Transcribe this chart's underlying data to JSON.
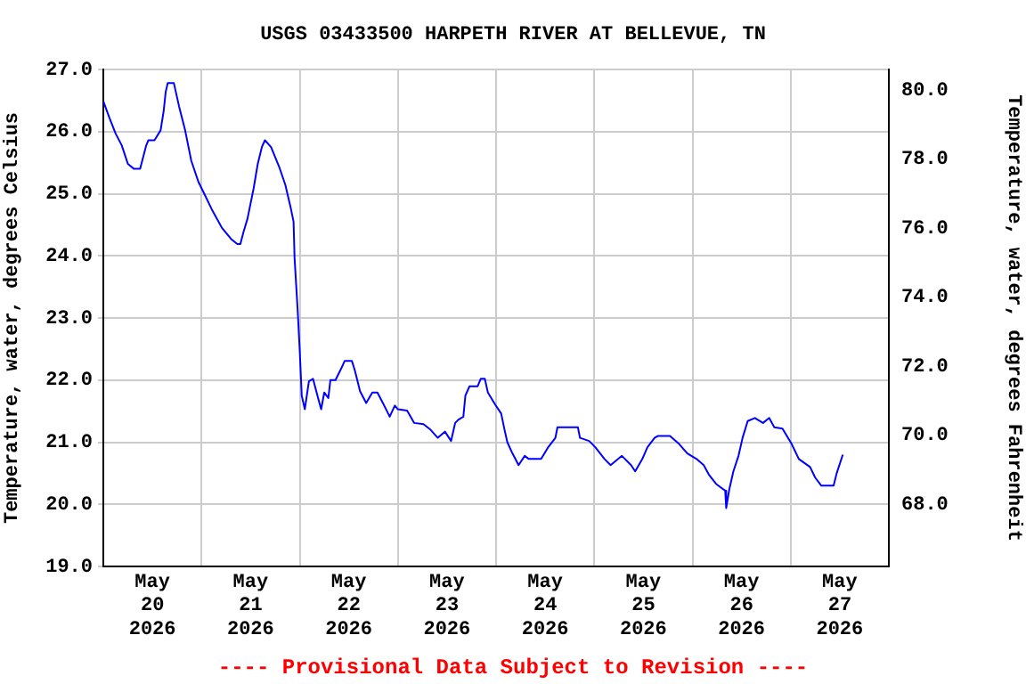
{
  "chart_data": {
    "type": "line",
    "title": "USGS 03433500 HARPETH RIVER AT BELLEVUE, TN",
    "ylabel": "Temperature, water, degrees Celsius",
    "y2label": "Temperature, water, degrees Fahrenheit",
    "annotations": [
      "---- Provisional Data Subject to Revision ----"
    ],
    "x": [
      "2026-05-20T00:00",
      "2026-05-20T01:30",
      "2026-05-20T03:00",
      "2026-05-20T04:30",
      "2026-05-20T06:00",
      "2026-05-20T07:30",
      "2026-05-20T09:00",
      "2026-05-20T10:30",
      "2026-05-20T11:00",
      "2026-05-20T12:30",
      "2026-05-20T14:00",
      "2026-05-20T14:45",
      "2026-05-20T15:15",
      "2026-05-20T15:45",
      "2026-05-20T17:15",
      "2026-05-20T18:30",
      "2026-05-20T20:00",
      "2026-05-20T21:30",
      "2026-05-20T23:15",
      "2026-05-21T00:45",
      "2026-05-21T02:30",
      "2026-05-21T05:00",
      "2026-05-21T07:15",
      "2026-05-21T08:45",
      "2026-05-21T09:30",
      "2026-05-21T10:15",
      "2026-05-21T11:15",
      "2026-05-21T12:45",
      "2026-05-21T13:45",
      "2026-05-21T14:45",
      "2026-05-21T15:30",
      "2026-05-21T17:00",
      "2026-05-21T19:00",
      "2026-05-21T20:30",
      "2026-05-21T21:45",
      "2026-05-21T22:30",
      "2026-05-21T22:45",
      "2026-05-21T23:30",
      "2026-05-22T00:00",
      "2026-05-22T00:30",
      "2026-05-22T01:15",
      "2026-05-22T02:15",
      "2026-05-22T03:15",
      "2026-05-22T04:30",
      "2026-05-22T05:15",
      "2026-05-22T06:00",
      "2026-05-22T07:00",
      "2026-05-22T07:30",
      "2026-05-22T08:45",
      "2026-05-22T10:15",
      "2026-05-22T11:00",
      "2026-05-22T12:45",
      "2026-05-22T13:30",
      "2026-05-22T14:45",
      "2026-05-22T16:15",
      "2026-05-22T17:45",
      "2026-05-22T19:00",
      "2026-05-22T20:30",
      "2026-05-22T21:15",
      "2026-05-22T22:00",
      "2026-05-22T23:15",
      "2026-05-23T00:00",
      "2026-05-23T02:15",
      "2026-05-23T04:00",
      "2026-05-23T06:15",
      "2026-05-23T08:00",
      "2026-05-23T09:45",
      "2026-05-23T11:30",
      "2026-05-23T13:00",
      "2026-05-23T14:00",
      "2026-05-23T14:45",
      "2026-05-23T16:00",
      "2026-05-23T16:30",
      "2026-05-23T17:30",
      "2026-05-23T19:30",
      "2026-05-23T20:15",
      "2026-05-23T21:15",
      "2026-05-23T22:00",
      "2026-05-23T23:45",
      "2026-05-24T01:15",
      "2026-05-24T02:00",
      "2026-05-24T02:45",
      "2026-05-24T04:00",
      "2026-05-24T05:30",
      "2026-05-24T07:00",
      "2026-05-24T08:00",
      "2026-05-24T11:00",
      "2026-05-24T12:45",
      "2026-05-24T14:30",
      "2026-05-24T15:00",
      "2026-05-24T20:00",
      "2026-05-24T20:30",
      "2026-05-24T22:45",
      "2026-05-25T00:15",
      "2026-05-25T02:30",
      "2026-05-25T04:00",
      "2026-05-25T06:45",
      "2026-05-25T09:00",
      "2026-05-25T10:00",
      "2026-05-25T11:45",
      "2026-05-25T13:00",
      "2026-05-25T14:45",
      "2026-05-25T15:30",
      "2026-05-25T18:30",
      "2026-05-25T20:45",
      "2026-05-25T22:45",
      "2026-05-26T01:00",
      "2026-05-26T02:45",
      "2026-05-26T04:00",
      "2026-05-26T05:45",
      "2026-05-26T06:45",
      "2026-05-26T08:00",
      "2026-05-26T08:15",
      "2026-05-26T09:00",
      "2026-05-26T10:00",
      "2026-05-26T11:15",
      "2026-05-26T12:15",
      "2026-05-26T13:30",
      "2026-05-26T15:15",
      "2026-05-26T17:15",
      "2026-05-26T18:45",
      "2026-05-26T20:00",
      "2026-05-26T22:00",
      "2026-05-27T00:15",
      "2026-05-27T02:00",
      "2026-05-27T04:45",
      "2026-05-27T06:00",
      "2026-05-27T07:30",
      "2026-05-27T10:30",
      "2026-05-27T11:15",
      "2026-05-27T12:45"
    ],
    "series": [
      {
        "color": "#0000ff",
        "values": [
          26.49,
          26.22,
          25.97,
          25.78,
          25.48,
          25.4,
          25.4,
          25.78,
          25.86,
          25.86,
          26.02,
          26.33,
          26.64,
          26.78,
          26.78,
          26.41,
          26.02,
          25.53,
          25.19,
          24.99,
          24.75,
          24.45,
          24.27,
          24.19,
          24.19,
          24.38,
          24.6,
          25.09,
          25.48,
          25.75,
          25.86,
          25.75,
          25.43,
          25.14,
          24.79,
          24.55,
          23.96,
          23.13,
          22.49,
          21.75,
          21.53,
          21.98,
          22.02,
          21.71,
          21.53,
          21.8,
          21.71,
          22.0,
          22.0,
          22.2,
          22.31,
          22.31,
          22.15,
          21.82,
          21.63,
          21.8,
          21.8,
          21.61,
          21.51,
          21.41,
          21.59,
          21.53,
          21.51,
          21.31,
          21.29,
          21.2,
          21.07,
          21.17,
          21.02,
          21.31,
          21.36,
          21.41,
          21.75,
          21.9,
          21.9,
          22.02,
          22.02,
          21.8,
          21.61,
          21.46,
          21.22,
          21.0,
          20.82,
          20.63,
          20.78,
          20.73,
          20.73,
          20.92,
          21.07,
          21.24,
          21.24,
          21.07,
          21.02,
          20.92,
          20.73,
          20.63,
          20.78,
          20.63,
          20.53,
          20.73,
          20.92,
          21.07,
          21.1,
          21.1,
          20.97,
          20.82,
          20.73,
          20.63,
          20.48,
          20.33,
          20.28,
          20.22,
          19.94,
          20.24,
          20.53,
          20.78,
          21.07,
          21.34,
          21.39,
          21.31,
          21.39,
          21.24,
          21.22,
          20.97,
          20.73,
          20.6,
          20.43,
          20.3,
          20.3,
          20.5,
          20.8
        ]
      }
    ],
    "xlim": [
      "2026-05-20T00:00",
      "2026-05-28T00:00"
    ],
    "xticks": [
      {
        "value": "2026-05-20T00:00",
        "label": null
      },
      {
        "value": "2026-05-20T12:00",
        "label": "May\n20\n2026"
      },
      {
        "value": "2026-05-21T00:00",
        "label": null
      },
      {
        "value": "2026-05-21T12:00",
        "label": "May\n21\n2026"
      },
      {
        "value": "2026-05-22T00:00",
        "label": null
      },
      {
        "value": "2026-05-22T12:00",
        "label": "May\n22\n2026"
      },
      {
        "value": "2026-05-23T00:00",
        "label": null
      },
      {
        "value": "2026-05-23T12:00",
        "label": "May\n23\n2026"
      },
      {
        "value": "2026-05-24T00:00",
        "label": null
      },
      {
        "value": "2026-05-24T12:00",
        "label": "May\n24\n2026"
      },
      {
        "value": "2026-05-25T00:00",
        "label": null
      },
      {
        "value": "2026-05-25T12:00",
        "label": "May\n25\n2026"
      },
      {
        "value": "2026-05-26T00:00",
        "label": null
      },
      {
        "value": "2026-05-26T12:00",
        "label": "May\n26\n2026"
      },
      {
        "value": "2026-05-27T00:00",
        "label": null
      },
      {
        "value": "2026-05-27T12:00",
        "label": "May\n27\n2026"
      },
      {
        "value": "2026-05-28T00:00",
        "label": null
      }
    ],
    "ylim": [
      19,
      27
    ],
    "yticks": [
      {
        "value": 19,
        "label": "19.0"
      },
      {
        "value": 20,
        "label": "20.0"
      },
      {
        "value": 21,
        "label": "21.0"
      },
      {
        "value": 22,
        "label": "22.0"
      },
      {
        "value": 23,
        "label": "23.0"
      },
      {
        "value": 24,
        "label": "24.0"
      },
      {
        "value": 25,
        "label": "25.0"
      },
      {
        "value": 26,
        "label": "26.0"
      },
      {
        "value": 27,
        "label": "27.0"
      }
    ],
    "y2lim": [
      66.2,
      80.6
    ],
    "y2ticks": [
      {
        "value": 68,
        "label": "68.0"
      },
      {
        "value": 70,
        "label": "70.0"
      },
      {
        "value": 72,
        "label": "72.0"
      },
      {
        "value": 74,
        "label": "74.0"
      },
      {
        "value": 76,
        "label": "76.0"
      },
      {
        "value": 78,
        "label": "78.0"
      },
      {
        "value": 80,
        "label": "80.0"
      }
    ],
    "grid": true,
    "legend": false,
    "marker": "none",
    "line_style": "solid"
  }
}
